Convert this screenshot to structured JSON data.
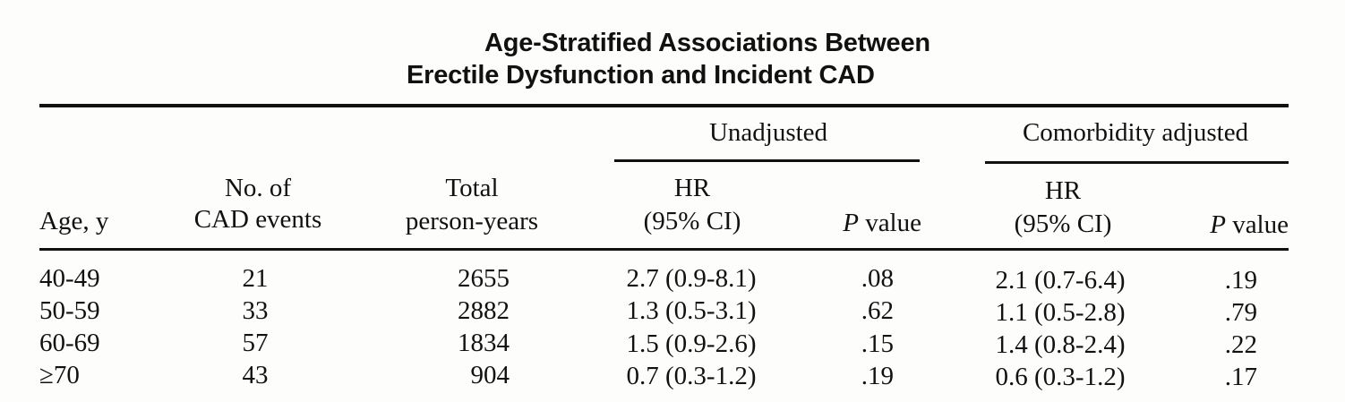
{
  "title_line1": "Age-Stratified Associations Between",
  "title_line2": "Erectile Dysfunction and Incident CAD",
  "group_headers": {
    "unadjusted": "Unadjusted",
    "adjusted": "Comorbidity adjusted"
  },
  "columns": {
    "age": "Age, y",
    "events_line1": "No. of",
    "events_line2": "CAD events",
    "py_line1": "Total",
    "py_line2": "person-years",
    "hr_line1": "HR",
    "hr_line2": "(95% CI)",
    "p_italic": "P",
    "p_rest": " value"
  },
  "rows": [
    {
      "age": "40-49",
      "events": "21",
      "person_years": "2655",
      "hr_unadj": "2.7 (0.9-8.1)",
      "p_unadj": ".08",
      "hr_adj": "2.1 (0.7-6.4)",
      "p_adj": ".19"
    },
    {
      "age": "50-59",
      "events": "33",
      "person_years": "2882",
      "hr_unadj": "1.3 (0.5-3.1)",
      "p_unadj": ".62",
      "hr_adj": "1.1 (0.5-2.8)",
      "p_adj": ".79"
    },
    {
      "age": "60-69",
      "events": "57",
      "person_years": "1834",
      "hr_unadj": "1.5 (0.9-2.6)",
      "p_unadj": ".15",
      "hr_adj": "1.4 (0.8-2.4)",
      "p_adj": ".22"
    },
    {
      "age": "≥70",
      "events": "43",
      "person_years": "904",
      "hr_unadj": "0.7 (0.3-1.2)",
      "p_unadj": ".19",
      "hr_adj": "0.6 (0.3-1.2)",
      "p_adj": ".17"
    }
  ]
}
